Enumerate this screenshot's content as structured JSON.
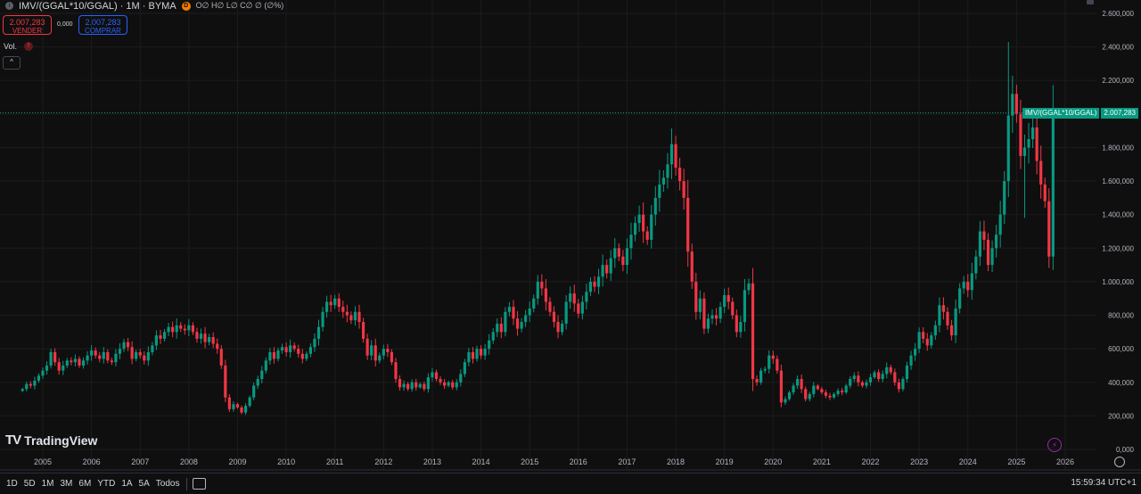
{
  "header": {
    "symbol": "IMV/(GGAL*10/GGAL) · 1M · BYMA",
    "badge": "D",
    "ohlc": "O∅ H∅ L∅ C∅ ∅ (∅%)"
  },
  "trade": {
    "sell_price": "2.007,283",
    "sell_label": "VENDER",
    "spread": "0,000",
    "buy_price": "2.007,283",
    "buy_label": "COMPRAR"
  },
  "volume": {
    "label": "Vol.",
    "warning": "!"
  },
  "collapse_label": "^",
  "price_tag": {
    "symbol": "IMV/(GGAL*10/GGAL)",
    "value": "2.007,283",
    "price": 2007283
  },
  "brand": "TradingView",
  "bottom_bar": {
    "timeframes": [
      "1D",
      "5D",
      "1M",
      "3M",
      "6M",
      "YTD",
      "1A",
      "5A",
      "Todos"
    ],
    "time": "15:59:34 UTC+1"
  },
  "colors": {
    "up": "#089981",
    "down": "#f23645",
    "background": "#0f0f0f",
    "grid": "#1c1c1f"
  },
  "chart_data": {
    "type": "candlestick",
    "interval": "1M",
    "yticks": [
      "2.600,000",
      "2.400,000",
      "2.200,000",
      "2.000,000",
      "1.800,000",
      "1.600,000",
      "1.400,000",
      "1.200,000",
      "1.000,000",
      "800,000",
      "600,000",
      "400,000",
      "200,000",
      "0,000"
    ],
    "ytick_values": [
      2600000,
      2400000,
      2200000,
      2000000,
      1800000,
      1600000,
      1400000,
      1200000,
      1000000,
      800000,
      600000,
      400000,
      200000,
      0
    ],
    "ylim": [
      0,
      2600000
    ],
    "xticks": [
      "2005",
      "2006",
      "2007",
      "2008",
      "2009",
      "2010",
      "2011",
      "2012",
      "2013",
      "2014",
      "2015",
      "2016",
      "2017",
      "2018",
      "2019",
      "2020",
      "2021",
      "2022",
      "2023",
      "2024",
      "2025",
      "2026"
    ],
    "xlim": [
      "2004-06",
      "2026-05"
    ],
    "closes": [
      {
        "date": "2004-08",
        "close": 360000
      },
      {
        "date": "2004-09",
        "close": 390000
      },
      {
        "date": "2004-10",
        "close": 380000
      },
      {
        "date": "2004-11",
        "close": 410000
      },
      {
        "date": "2004-12",
        "close": 440000
      },
      {
        "date": "2005-01",
        "close": 470000
      },
      {
        "date": "2005-02",
        "close": 500000
      },
      {
        "date": "2005-03",
        "close": 580000
      },
      {
        "date": "2005-04",
        "close": 520000
      },
      {
        "date": "2005-05",
        "close": 470000
      },
      {
        "date": "2005-06",
        "close": 500000
      },
      {
        "date": "2005-07",
        "close": 530000
      },
      {
        "date": "2005-08",
        "close": 520000
      },
      {
        "date": "2005-09",
        "close": 540000
      },
      {
        "date": "2005-10",
        "close": 500000
      },
      {
        "date": "2005-11",
        "close": 530000
      },
      {
        "date": "2005-12",
        "close": 560000
      },
      {
        "date": "2006-01",
        "close": 590000
      },
      {
        "date": "2006-02",
        "close": 560000
      },
      {
        "date": "2006-03",
        "close": 540000
      },
      {
        "date": "2006-04",
        "close": 580000
      },
      {
        "date": "2006-05",
        "close": 530000
      },
      {
        "date": "2006-06",
        "close": 520000
      },
      {
        "date": "2006-07",
        "close": 570000
      },
      {
        "date": "2006-08",
        "close": 600000
      },
      {
        "date": "2006-09",
        "close": 640000
      },
      {
        "date": "2006-10",
        "close": 610000
      },
      {
        "date": "2006-11",
        "close": 540000
      },
      {
        "date": "2006-12",
        "close": 580000
      },
      {
        "date": "2007-01",
        "close": 560000
      },
      {
        "date": "2007-02",
        "close": 530000
      },
      {
        "date": "2007-03",
        "close": 580000
      },
      {
        "date": "2007-04",
        "close": 620000
      },
      {
        "date": "2007-05",
        "close": 680000
      },
      {
        "date": "2007-06",
        "close": 660000
      },
      {
        "date": "2007-07",
        "close": 700000
      },
      {
        "date": "2007-08",
        "close": 730000
      },
      {
        "date": "2007-09",
        "close": 700000
      },
      {
        "date": "2007-10",
        "close": 740000
      },
      {
        "date": "2007-11",
        "close": 720000
      },
      {
        "date": "2007-12",
        "close": 710000
      },
      {
        "date": "2008-01",
        "close": 740000
      },
      {
        "date": "2008-02",
        "close": 700000
      },
      {
        "date": "2008-03",
        "close": 660000
      },
      {
        "date": "2008-04",
        "close": 690000
      },
      {
        "date": "2008-05",
        "close": 640000
      },
      {
        "date": "2008-06",
        "close": 670000
      },
      {
        "date": "2008-07",
        "close": 630000
      },
      {
        "date": "2008-08",
        "close": 600000
      },
      {
        "date": "2008-09",
        "close": 500000
      },
      {
        "date": "2008-10",
        "close": 310000
      },
      {
        "date": "2008-11",
        "close": 240000
      },
      {
        "date": "2008-12",
        "close": 270000
      },
      {
        "date": "2009-01",
        "close": 250000
      },
      {
        "date": "2009-02",
        "close": 220000
      },
      {
        "date": "2009-03",
        "close": 260000
      },
      {
        "date": "2009-04",
        "close": 310000
      },
      {
        "date": "2009-05",
        "close": 380000
      },
      {
        "date": "2009-06",
        "close": 420000
      },
      {
        "date": "2009-07",
        "close": 470000
      },
      {
        "date": "2009-08",
        "close": 530000
      },
      {
        "date": "2009-09",
        "close": 580000
      },
      {
        "date": "2009-10",
        "close": 540000
      },
      {
        "date": "2009-11",
        "close": 590000
      },
      {
        "date": "2009-12",
        "close": 610000
      },
      {
        "date": "2010-01",
        "close": 580000
      },
      {
        "date": "2010-02",
        "close": 620000
      },
      {
        "date": "2010-03",
        "close": 600000
      },
      {
        "date": "2010-04",
        "close": 570000
      },
      {
        "date": "2010-05",
        "close": 540000
      },
      {
        "date": "2010-06",
        "close": 570000
      },
      {
        "date": "2010-07",
        "close": 610000
      },
      {
        "date": "2010-08",
        "close": 660000
      },
      {
        "date": "2010-09",
        "close": 730000
      },
      {
        "date": "2010-10",
        "close": 820000
      },
      {
        "date": "2010-11",
        "close": 880000
      },
      {
        "date": "2010-12",
        "close": 860000
      },
      {
        "date": "2011-01",
        "close": 900000
      },
      {
        "date": "2011-02",
        "close": 850000
      },
      {
        "date": "2011-03",
        "close": 820000
      },
      {
        "date": "2011-04",
        "close": 800000
      },
      {
        "date": "2011-05",
        "close": 770000
      },
      {
        "date": "2011-06",
        "close": 820000
      },
      {
        "date": "2011-07",
        "close": 760000
      },
      {
        "date": "2011-08",
        "close": 660000
      },
      {
        "date": "2011-09",
        "close": 560000
      },
      {
        "date": "2011-10",
        "close": 620000
      },
      {
        "date": "2011-11",
        "close": 530000
      },
      {
        "date": "2011-12",
        "close": 560000
      },
      {
        "date": "2012-01",
        "close": 600000
      },
      {
        "date": "2012-02",
        "close": 580000
      },
      {
        "date": "2012-03",
        "close": 520000
      },
      {
        "date": "2012-04",
        "close": 420000
      },
      {
        "date": "2012-05",
        "close": 370000
      },
      {
        "date": "2012-06",
        "close": 390000
      },
      {
        "date": "2012-07",
        "close": 360000
      },
      {
        "date": "2012-08",
        "close": 400000
      },
      {
        "date": "2012-09",
        "close": 370000
      },
      {
        "date": "2012-10",
        "close": 390000
      },
      {
        "date": "2012-11",
        "close": 360000
      },
      {
        "date": "2012-12",
        "close": 430000
      },
      {
        "date": "2013-01",
        "close": 460000
      },
      {
        "date": "2013-02",
        "close": 420000
      },
      {
        "date": "2013-03",
        "close": 400000
      },
      {
        "date": "2013-04",
        "close": 380000
      },
      {
        "date": "2013-05",
        "close": 400000
      },
      {
        "date": "2013-06",
        "close": 370000
      },
      {
        "date": "2013-07",
        "close": 400000
      },
      {
        "date": "2013-08",
        "close": 450000
      },
      {
        "date": "2013-09",
        "close": 520000
      },
      {
        "date": "2013-10",
        "close": 580000
      },
      {
        "date": "2013-11",
        "close": 540000
      },
      {
        "date": "2013-12",
        "close": 600000
      },
      {
        "date": "2014-01",
        "close": 560000
      },
      {
        "date": "2014-02",
        "close": 600000
      },
      {
        "date": "2014-03",
        "close": 650000
      },
      {
        "date": "2014-04",
        "close": 700000
      },
      {
        "date": "2014-05",
        "close": 750000
      },
      {
        "date": "2014-06",
        "close": 700000
      },
      {
        "date": "2014-07",
        "close": 820000
      },
      {
        "date": "2014-08",
        "close": 850000
      },
      {
        "date": "2014-09",
        "close": 780000
      },
      {
        "date": "2014-10",
        "close": 720000
      },
      {
        "date": "2014-11",
        "close": 760000
      },
      {
        "date": "2014-12",
        "close": 800000
      },
      {
        "date": "2015-01",
        "close": 840000
      },
      {
        "date": "2015-02",
        "close": 900000
      },
      {
        "date": "2015-03",
        "close": 1000000
      },
      {
        "date": "2015-04",
        "close": 960000
      },
      {
        "date": "2015-05",
        "close": 880000
      },
      {
        "date": "2015-06",
        "close": 820000
      },
      {
        "date": "2015-07",
        "close": 760000
      },
      {
        "date": "2015-08",
        "close": 700000
      },
      {
        "date": "2015-09",
        "close": 750000
      },
      {
        "date": "2015-10",
        "close": 880000
      },
      {
        "date": "2015-11",
        "close": 930000
      },
      {
        "date": "2015-12",
        "close": 870000
      },
      {
        "date": "2016-01",
        "close": 810000
      },
      {
        "date": "2016-02",
        "close": 880000
      },
      {
        "date": "2016-03",
        "close": 940000
      },
      {
        "date": "2016-04",
        "close": 1000000
      },
      {
        "date": "2016-05",
        "close": 970000
      },
      {
        "date": "2016-06",
        "close": 1030000
      },
      {
        "date": "2016-07",
        "close": 1100000
      },
      {
        "date": "2016-08",
        "close": 1050000
      },
      {
        "date": "2016-09",
        "close": 1140000
      },
      {
        "date": "2016-10",
        "close": 1200000
      },
      {
        "date": "2016-11",
        "close": 1150000
      },
      {
        "date": "2016-12",
        "close": 1100000
      },
      {
        "date": "2017-01",
        "close": 1200000
      },
      {
        "date": "2017-02",
        "close": 1280000
      },
      {
        "date": "2017-03",
        "close": 1350000
      },
      {
        "date": "2017-04",
        "close": 1400000
      },
      {
        "date": "2017-05",
        "close": 1300000
      },
      {
        "date": "2017-06",
        "close": 1250000
      },
      {
        "date": "2017-07",
        "close": 1400000
      },
      {
        "date": "2017-08",
        "close": 1500000
      },
      {
        "date": "2017-09",
        "close": 1580000
      },
      {
        "date": "2017-10",
        "close": 1620000
      },
      {
        "date": "2017-11",
        "close": 1700000
      },
      {
        "date": "2017-12",
        "close": 1820000
      },
      {
        "date": "2018-01",
        "close": 1680000
      },
      {
        "date": "2018-02",
        "close": 1600000
      },
      {
        "date": "2018-03",
        "close": 1500000
      },
      {
        "date": "2018-04",
        "close": 1180000
      },
      {
        "date": "2018-05",
        "close": 1000000
      },
      {
        "date": "2018-06",
        "close": 820000
      },
      {
        "date": "2018-07",
        "close": 900000
      },
      {
        "date": "2018-08",
        "close": 720000
      },
      {
        "date": "2018-09",
        "close": 780000
      },
      {
        "date": "2018-10",
        "close": 800000
      },
      {
        "date": "2018-11",
        "close": 780000
      },
      {
        "date": "2018-12",
        "close": 850000
      },
      {
        "date": "2019-01",
        "close": 920000
      },
      {
        "date": "2019-02",
        "close": 880000
      },
      {
        "date": "2019-03",
        "close": 800000
      },
      {
        "date": "2019-04",
        "close": 700000
      },
      {
        "date": "2019-05",
        "close": 760000
      },
      {
        "date": "2019-06",
        "close": 950000
      },
      {
        "date": "2019-07",
        "close": 990000
      },
      {
        "date": "2019-08",
        "close": 420000
      },
      {
        "date": "2019-09",
        "close": 400000
      },
      {
        "date": "2019-10",
        "close": 470000
      },
      {
        "date": "2019-11",
        "close": 480000
      },
      {
        "date": "2019-12",
        "close": 560000
      },
      {
        "date": "2020-01",
        "close": 540000
      },
      {
        "date": "2020-02",
        "close": 470000
      },
      {
        "date": "2020-03",
        "close": 280000
      },
      {
        "date": "2020-04",
        "close": 300000
      },
      {
        "date": "2020-05",
        "close": 340000
      },
      {
        "date": "2020-06",
        "close": 380000
      },
      {
        "date": "2020-07",
        "close": 420000
      },
      {
        "date": "2020-08",
        "close": 360000
      },
      {
        "date": "2020-09",
        "close": 300000
      },
      {
        "date": "2020-10",
        "close": 330000
      },
      {
        "date": "2020-11",
        "close": 380000
      },
      {
        "date": "2020-12",
        "close": 360000
      },
      {
        "date": "2021-01",
        "close": 340000
      },
      {
        "date": "2021-02",
        "close": 320000
      },
      {
        "date": "2021-03",
        "close": 310000
      },
      {
        "date": "2021-04",
        "close": 330000
      },
      {
        "date": "2021-05",
        "close": 350000
      },
      {
        "date": "2021-06",
        "close": 340000
      },
      {
        "date": "2021-07",
        "close": 380000
      },
      {
        "date": "2021-08",
        "close": 420000
      },
      {
        "date": "2021-09",
        "close": 440000
      },
      {
        "date": "2021-10",
        "close": 400000
      },
      {
        "date": "2021-11",
        "close": 380000
      },
      {
        "date": "2021-12",
        "close": 400000
      },
      {
        "date": "2022-01",
        "close": 430000
      },
      {
        "date": "2022-02",
        "close": 460000
      },
      {
        "date": "2022-03",
        "close": 420000
      },
      {
        "date": "2022-04",
        "close": 450000
      },
      {
        "date": "2022-05",
        "close": 490000
      },
      {
        "date": "2022-06",
        "close": 460000
      },
      {
        "date": "2022-07",
        "close": 400000
      },
      {
        "date": "2022-08",
        "close": 360000
      },
      {
        "date": "2022-09",
        "close": 420000
      },
      {
        "date": "2022-10",
        "close": 500000
      },
      {
        "date": "2022-11",
        "close": 560000
      },
      {
        "date": "2022-12",
        "close": 600000
      },
      {
        "date": "2023-01",
        "close": 700000
      },
      {
        "date": "2023-02",
        "close": 660000
      },
      {
        "date": "2023-03",
        "close": 620000
      },
      {
        "date": "2023-04",
        "close": 680000
      },
      {
        "date": "2023-05",
        "close": 740000
      },
      {
        "date": "2023-06",
        "close": 860000
      },
      {
        "date": "2023-07",
        "close": 820000
      },
      {
        "date": "2023-08",
        "close": 740000
      },
      {
        "date": "2023-09",
        "close": 680000
      },
      {
        "date": "2023-10",
        "close": 840000
      },
      {
        "date": "2023-11",
        "close": 960000
      },
      {
        "date": "2023-12",
        "close": 1000000
      },
      {
        "date": "2024-01",
        "close": 950000
      },
      {
        "date": "2024-02",
        "close": 1050000
      },
      {
        "date": "2024-03",
        "close": 1150000
      },
      {
        "date": "2024-04",
        "close": 1300000
      },
      {
        "date": "2024-05",
        "close": 1250000
      },
      {
        "date": "2024-06",
        "close": 1100000
      },
      {
        "date": "2024-07",
        "close": 1200000
      },
      {
        "date": "2024-08",
        "close": 1280000
      },
      {
        "date": "2024-09",
        "close": 1400000
      },
      {
        "date": "2024-10",
        "close": 1600000
      },
      {
        "date": "2024-11",
        "close": 1990000
      },
      {
        "date": "2024-12",
        "close": 2120000
      },
      {
        "date": "2025-01",
        "close": 2000000
      },
      {
        "date": "2025-02",
        "close": 1750000
      },
      {
        "date": "2025-03",
        "close": 1800000
      },
      {
        "date": "2025-04",
        "close": 1850000
      },
      {
        "date": "2025-05",
        "close": 1920000
      },
      {
        "date": "2025-06",
        "close": 1720000
      },
      {
        "date": "2025-07",
        "close": 1580000
      },
      {
        "date": "2025-08",
        "close": 1480000
      },
      {
        "date": "2025-09",
        "close": 1150000
      },
      {
        "date": "2025-10",
        "close": 2007283
      }
    ],
    "annotations": [
      "2025-11 high ≈ 2.430.000",
      "2025-10 low ≈ 1.070.000"
    ]
  }
}
